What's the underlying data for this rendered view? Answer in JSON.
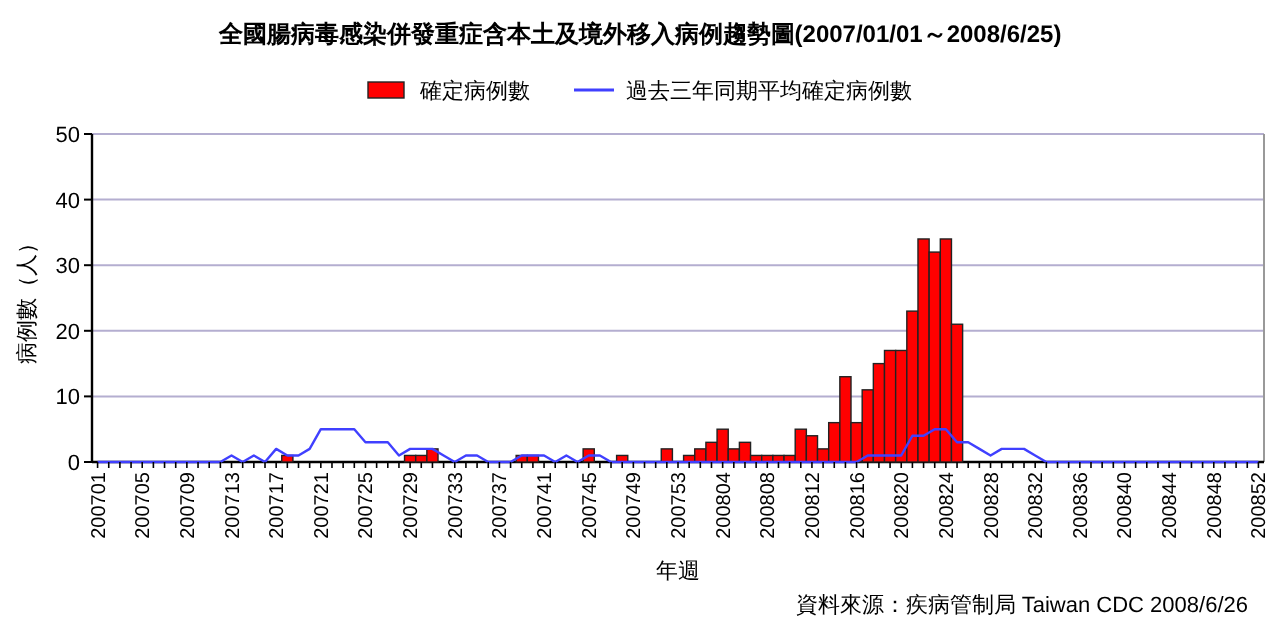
{
  "chart_data": {
    "type": "bar",
    "title": "全國腸病毒感染併發重症含本土及境外移入病例趨勢圖(2007/01/01～2008/6/25)",
    "xlabel": "年週",
    "ylabel": "病例數（人）",
    "annotations": [
      "資料來源：疾病管制局 Taiwan CDC 2008/6/26"
    ],
    "categories": [
      "200701",
      null,
      null,
      null,
      "200705",
      null,
      null,
      null,
      "200709",
      null,
      null,
      null,
      "200713",
      null,
      null,
      null,
      "200717",
      null,
      null,
      null,
      "200721",
      null,
      null,
      null,
      "200725",
      null,
      null,
      null,
      "200729",
      null,
      null,
      null,
      "200733",
      null,
      null,
      null,
      "200737",
      null,
      null,
      null,
      "200741",
      null,
      null,
      null,
      "200745",
      null,
      null,
      null,
      "200749",
      null,
      null,
      null,
      "200753",
      null,
      null,
      null,
      "200804",
      null,
      null,
      null,
      "200808",
      null,
      null,
      null,
      "200812",
      null,
      null,
      null,
      "200816",
      null,
      null,
      null,
      "200820",
      null,
      null,
      null,
      "200824",
      null,
      null,
      null,
      "200828",
      null,
      null,
      null,
      "200832",
      null,
      null,
      null,
      "200836",
      null,
      null,
      null,
      "200840",
      null,
      null,
      null,
      "200844",
      null,
      null,
      null,
      "200848",
      null,
      null,
      null,
      "200852"
    ],
    "series": [
      {
        "name": "確定病例數",
        "color": "#ff0000",
        "values": [
          0,
          0,
          0,
          0,
          0,
          0,
          0,
          0,
          0,
          0,
          0,
          0,
          0,
          0,
          0,
          0,
          0,
          1,
          0,
          0,
          0,
          0,
          0,
          0,
          0,
          0,
          0,
          0,
          1,
          1,
          2,
          0,
          0,
          0,
          0,
          0,
          0,
          0,
          1,
          1,
          0,
          0,
          0,
          0,
          2,
          0,
          0,
          1,
          0,
          0,
          0,
          2,
          0,
          1,
          2,
          3,
          5,
          2,
          3,
          1,
          1,
          1,
          1,
          5,
          4,
          2,
          6,
          13,
          6,
          11,
          15,
          17,
          17,
          23,
          34,
          32,
          34,
          21,
          null,
          null,
          null,
          null,
          null,
          null,
          null,
          null,
          null,
          null,
          null,
          null,
          null,
          null,
          null,
          null,
          null,
          null,
          null,
          null,
          null,
          null,
          null,
          null,
          null,
          null,
          null
        ]
      },
      {
        "name": "過去三年同期平均確定病例數",
        "type": "line",
        "color": "#4040ff",
        "values": [
          0,
          0,
          0,
          0,
          0,
          0,
          0,
          0,
          0,
          0,
          0,
          0,
          1,
          0,
          1,
          0,
          2,
          1,
          1,
          2,
          5,
          5,
          5,
          5,
          3,
          3,
          3,
          1,
          2,
          2,
          2,
          1,
          0,
          1,
          1,
          0,
          0,
          0,
          1,
          1,
          1,
          0,
          1,
          0,
          1,
          1,
          0,
          0,
          0,
          0,
          0,
          0,
          0,
          0,
          0,
          0,
          0,
          0,
          0,
          0,
          0,
          0,
          0,
          0,
          0,
          0,
          0,
          0,
          0,
          1,
          1,
          1,
          1,
          4,
          4,
          5,
          5,
          3,
          3,
          2,
          1,
          2,
          2,
          2,
          1,
          0,
          0,
          0,
          0,
          0,
          0,
          0,
          0,
          0,
          0,
          0,
          0,
          0,
          0,
          0,
          0,
          0,
          0,
          0,
          0
        ]
      }
    ],
    "ylim": [
      0,
      50
    ],
    "yticks": [
      0,
      10,
      20,
      30,
      40,
      50
    ],
    "grid": "y",
    "legend": "top",
    "line_style": "solid",
    "marker": "none"
  }
}
